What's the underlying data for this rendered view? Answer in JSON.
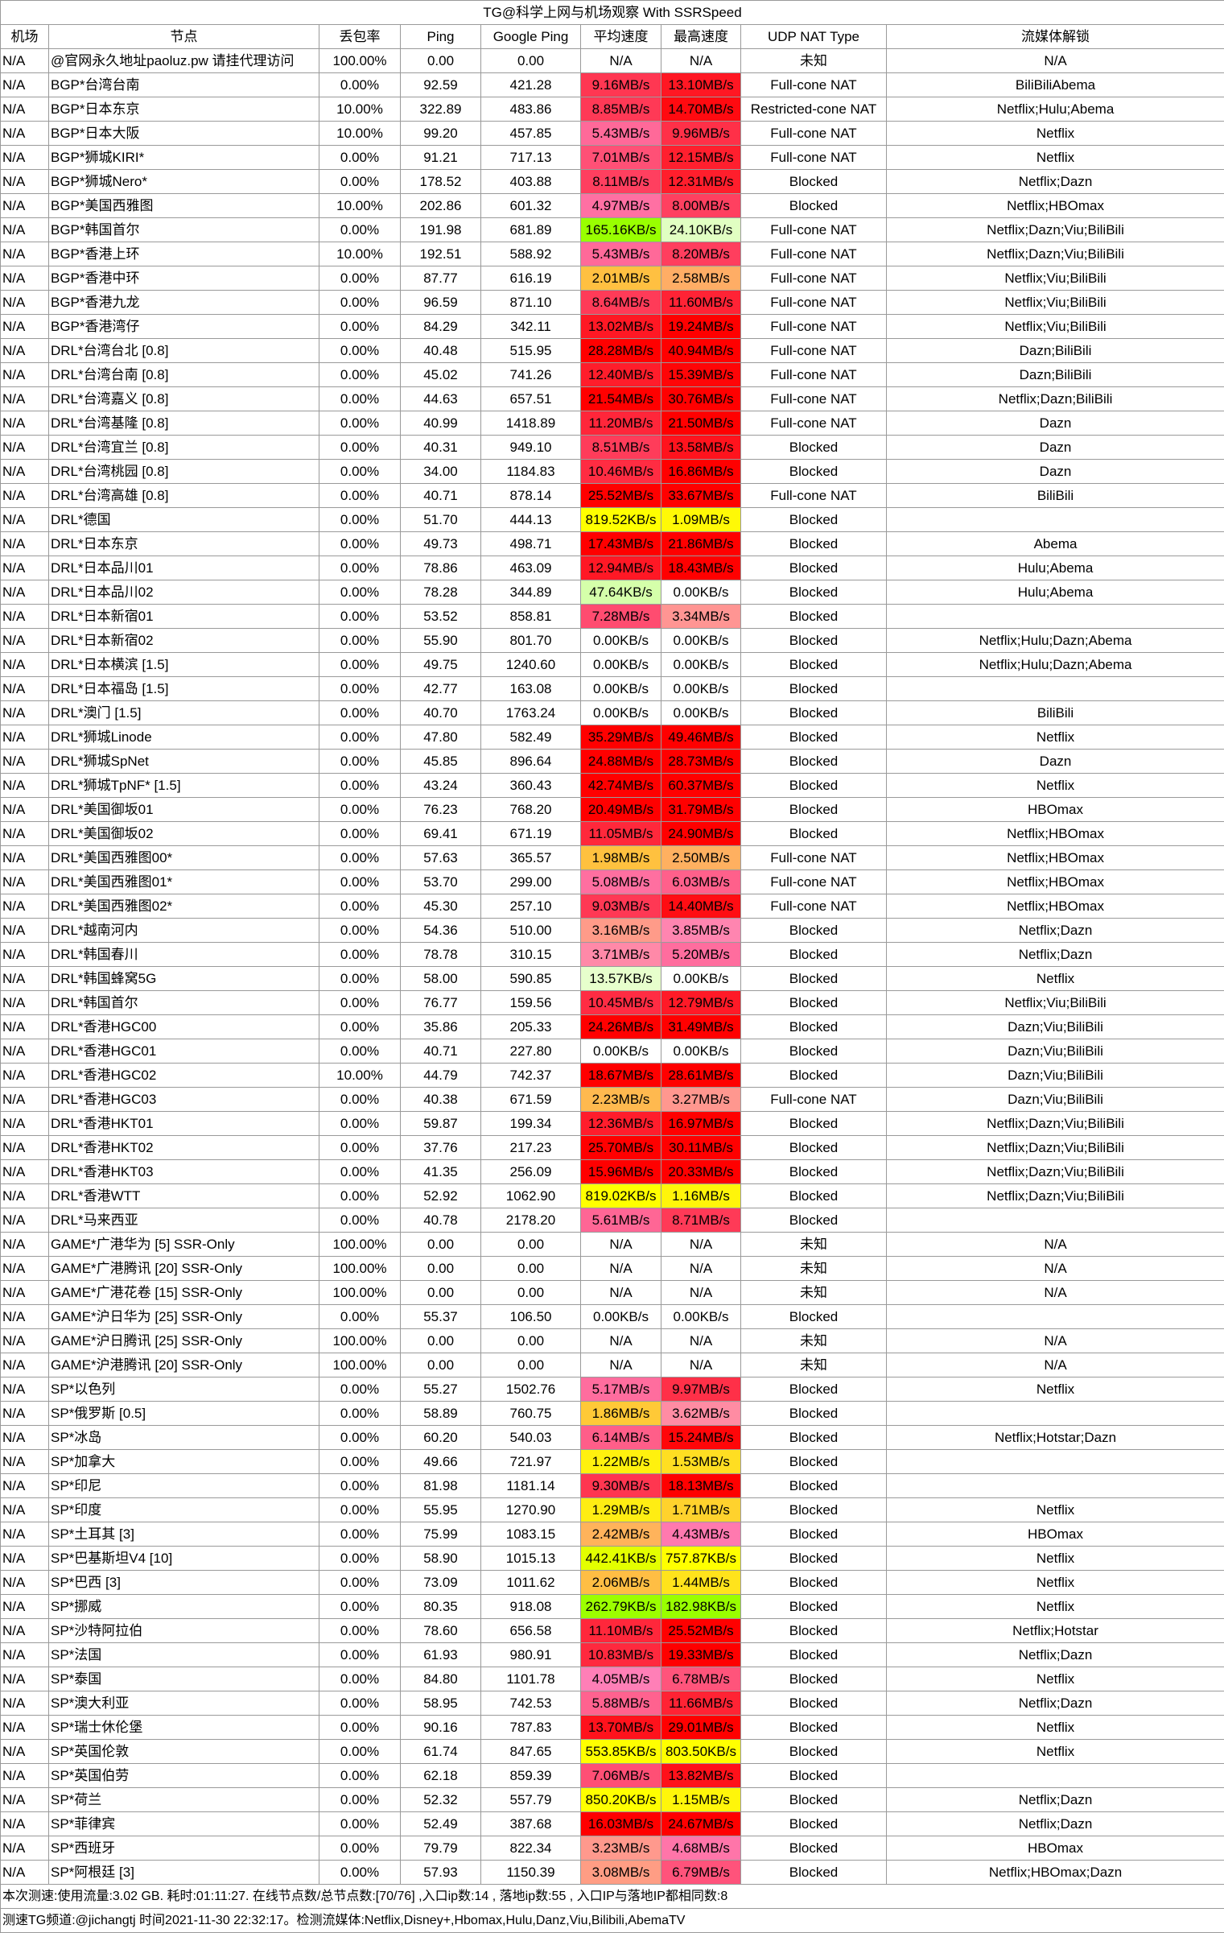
{
  "title": "TG@科学上网与机场观察 With SSRSpeed",
  "headers": [
    "机场",
    "节点",
    "丢包率",
    "Ping",
    "Google Ping",
    "平均速度",
    "最高速度",
    "UDP NAT Type",
    "流媒体解锁"
  ],
  "speed_color_stops": [
    [
      "0",
      "#ffffff"
    ],
    [
      "8KB",
      "#eaffd2"
    ],
    [
      "64KB",
      "#ccff99"
    ],
    [
      "128KB",
      "#99ff00"
    ],
    [
      "256KB",
      "#99ff00"
    ],
    [
      "512KB",
      "#ffff00"
    ],
    [
      "1MB",
      "#ffff00"
    ],
    [
      "2MB",
      "#ffc040"
    ],
    [
      "3MB",
      "#ffa080"
    ],
    [
      "4MB",
      "#ff80b8"
    ],
    [
      "8MB",
      "#ff4060"
    ],
    [
      "16MB",
      "#ff0000"
    ]
  ],
  "rows": [
    [
      "N/A",
      "@官网永久地址paoluz.pw 请挂代理访问",
      "100.00%",
      "0.00",
      "0.00",
      "N/A",
      "N/A",
      "未知",
      "N/A"
    ],
    [
      "N/A",
      "BGP*台湾台南",
      "0.00%",
      "92.59",
      "421.28",
      "9.16MB/s",
      "13.10MB/s",
      "Full-cone NAT",
      "BiliBiliAbema"
    ],
    [
      "N/A",
      "BGP*日本东京",
      "10.00%",
      "322.89",
      "483.86",
      "8.85MB/s",
      "14.70MB/s",
      "Restricted-cone NAT",
      "Netflix;Hulu;Abema"
    ],
    [
      "N/A",
      "BGP*日本大阪",
      "10.00%",
      "99.20",
      "457.85",
      "5.43MB/s",
      "9.96MB/s",
      "Full-cone NAT",
      "Netflix"
    ],
    [
      "N/A",
      "BGP*狮城KIRI*",
      "0.00%",
      "91.21",
      "717.13",
      "7.01MB/s",
      "12.15MB/s",
      "Full-cone NAT",
      "Netflix"
    ],
    [
      "N/A",
      "BGP*狮城Nero*",
      "0.00%",
      "178.52",
      "403.88",
      "8.11MB/s",
      "12.31MB/s",
      "Blocked",
      "Netflix;Dazn"
    ],
    [
      "N/A",
      "BGP*美国西雅图",
      "10.00%",
      "202.86",
      "601.32",
      "4.97MB/s",
      "8.00MB/s",
      "Blocked",
      "Netflix;HBOmax"
    ],
    [
      "N/A",
      "BGP*韩国首尔",
      "0.00%",
      "191.98",
      "681.89",
      "165.16KB/s",
      "24.10KB/s",
      "Full-cone NAT",
      "Netflix;Dazn;Viu;BiliBili"
    ],
    [
      "N/A",
      "BGP*香港上环",
      "10.00%",
      "192.51",
      "588.92",
      "5.43MB/s",
      "8.20MB/s",
      "Full-cone NAT",
      "Netflix;Dazn;Viu;BiliBili"
    ],
    [
      "N/A",
      "BGP*香港中环",
      "0.00%",
      "87.77",
      "616.19",
      "2.01MB/s",
      "2.58MB/s",
      "Full-cone NAT",
      "Netflix;Viu;BiliBili"
    ],
    [
      "N/A",
      "BGP*香港九龙",
      "0.00%",
      "96.59",
      "871.10",
      "8.64MB/s",
      "11.60MB/s",
      "Full-cone NAT",
      "Netflix;Viu;BiliBili"
    ],
    [
      "N/A",
      "BGP*香港湾仔",
      "0.00%",
      "84.29",
      "342.11",
      "13.02MB/s",
      "19.24MB/s",
      "Full-cone NAT",
      "Netflix;Viu;BiliBili"
    ],
    [
      "N/A",
      "DRL*台湾台北 [0.8]",
      "0.00%",
      "40.48",
      "515.95",
      "28.28MB/s",
      "40.94MB/s",
      "Full-cone NAT",
      "Dazn;BiliBili"
    ],
    [
      "N/A",
      "DRL*台湾台南 [0.8]",
      "0.00%",
      "45.02",
      "741.26",
      "12.40MB/s",
      "15.39MB/s",
      "Full-cone NAT",
      "Dazn;BiliBili"
    ],
    [
      "N/A",
      "DRL*台湾嘉义 [0.8]",
      "0.00%",
      "44.63",
      "657.51",
      "21.54MB/s",
      "30.76MB/s",
      "Full-cone NAT",
      "Netflix;Dazn;BiliBili"
    ],
    [
      "N/A",
      "DRL*台湾基隆 [0.8]",
      "0.00%",
      "40.99",
      "1418.89",
      "11.20MB/s",
      "21.50MB/s",
      "Full-cone NAT",
      "Dazn"
    ],
    [
      "N/A",
      "DRL*台湾宜兰 [0.8]",
      "0.00%",
      "40.31",
      "949.10",
      "8.51MB/s",
      "13.58MB/s",
      "Blocked",
      "Dazn"
    ],
    [
      "N/A",
      "DRL*台湾桃园 [0.8]",
      "0.00%",
      "34.00",
      "1184.83",
      "10.46MB/s",
      "16.86MB/s",
      "Blocked",
      "Dazn"
    ],
    [
      "N/A",
      "DRL*台湾高雄 [0.8]",
      "0.00%",
      "40.71",
      "878.14",
      "25.52MB/s",
      "33.67MB/s",
      "Full-cone NAT",
      "BiliBili"
    ],
    [
      "N/A",
      "DRL*德国",
      "0.00%",
      "51.70",
      "444.13",
      "819.52KB/s",
      "1.09MB/s",
      "Blocked",
      ""
    ],
    [
      "N/A",
      "DRL*日本东京",
      "0.00%",
      "49.73",
      "498.71",
      "17.43MB/s",
      "21.86MB/s",
      "Blocked",
      "Abema"
    ],
    [
      "N/A",
      "DRL*日本品川01",
      "0.00%",
      "78.86",
      "463.09",
      "12.94MB/s",
      "18.43MB/s",
      "Blocked",
      "Hulu;Abema"
    ],
    [
      "N/A",
      "DRL*日本品川02",
      "0.00%",
      "78.28",
      "344.89",
      "47.64KB/s",
      "0.00KB/s",
      "Blocked",
      "Hulu;Abema"
    ],
    [
      "N/A",
      "DRL*日本新宿01",
      "0.00%",
      "53.52",
      "858.81",
      "7.28MB/s",
      "3.34MB/s",
      "Blocked",
      ""
    ],
    [
      "N/A",
      "DRL*日本新宿02",
      "0.00%",
      "55.90",
      "801.70",
      "0.00KB/s",
      "0.00KB/s",
      "Blocked",
      "Netflix;Hulu;Dazn;Abema"
    ],
    [
      "N/A",
      "DRL*日本横滨 [1.5]",
      "0.00%",
      "49.75",
      "1240.60",
      "0.00KB/s",
      "0.00KB/s",
      "Blocked",
      "Netflix;Hulu;Dazn;Abema"
    ],
    [
      "N/A",
      "DRL*日本福岛 [1.5]",
      "0.00%",
      "42.77",
      "163.08",
      "0.00KB/s",
      "0.00KB/s",
      "Blocked",
      ""
    ],
    [
      "N/A",
      "DRL*澳门 [1.5]",
      "0.00%",
      "40.70",
      "1763.24",
      "0.00KB/s",
      "0.00KB/s",
      "Blocked",
      "BiliBili"
    ],
    [
      "N/A",
      "DRL*狮城Linode",
      "0.00%",
      "47.80",
      "582.49",
      "35.29MB/s",
      "49.46MB/s",
      "Blocked",
      "Netflix"
    ],
    [
      "N/A",
      "DRL*狮城SpNet",
      "0.00%",
      "45.85",
      "896.64",
      "24.88MB/s",
      "28.73MB/s",
      "Blocked",
      "Dazn"
    ],
    [
      "N/A",
      "DRL*狮城TpNF* [1.5]",
      "0.00%",
      "43.24",
      "360.43",
      "42.74MB/s",
      "60.37MB/s",
      "Blocked",
      "Netflix"
    ],
    [
      "N/A",
      "DRL*美国御坂01",
      "0.00%",
      "76.23",
      "768.20",
      "20.49MB/s",
      "31.79MB/s",
      "Blocked",
      "HBOmax"
    ],
    [
      "N/A",
      "DRL*美国御坂02",
      "0.00%",
      "69.41",
      "671.19",
      "11.05MB/s",
      "24.90MB/s",
      "Blocked",
      "Netflix;HBOmax"
    ],
    [
      "N/A",
      "DRL*美国西雅图00*",
      "0.00%",
      "57.63",
      "365.57",
      "1.98MB/s",
      "2.50MB/s",
      "Full-cone NAT",
      "Netflix;HBOmax"
    ],
    [
      "N/A",
      "DRL*美国西雅图01*",
      "0.00%",
      "53.70",
      "299.00",
      "5.08MB/s",
      "6.03MB/s",
      "Full-cone NAT",
      "Netflix;HBOmax"
    ],
    [
      "N/A",
      "DRL*美国西雅图02*",
      "0.00%",
      "45.30",
      "257.10",
      "9.03MB/s",
      "14.40MB/s",
      "Full-cone NAT",
      "Netflix;HBOmax"
    ],
    [
      "N/A",
      "DRL*越南河内",
      "0.00%",
      "54.36",
      "510.00",
      "3.16MB/s",
      "3.85MB/s",
      "Blocked",
      "Netflix;Dazn"
    ],
    [
      "N/A",
      "DRL*韩国春川",
      "0.00%",
      "78.78",
      "310.15",
      "3.71MB/s",
      "5.20MB/s",
      "Blocked",
      "Netflix;Dazn"
    ],
    [
      "N/A",
      "DRL*韩国蜂窝5G",
      "0.00%",
      "58.00",
      "590.85",
      "13.57KB/s",
      "0.00KB/s",
      "Blocked",
      "Netflix"
    ],
    [
      "N/A",
      "DRL*韩国首尔",
      "0.00%",
      "76.77",
      "159.56",
      "10.45MB/s",
      "12.79MB/s",
      "Blocked",
      "Netflix;Viu;BiliBili"
    ],
    [
      "N/A",
      "DRL*香港HGC00",
      "0.00%",
      "35.86",
      "205.33",
      "24.26MB/s",
      "31.49MB/s",
      "Blocked",
      "Dazn;Viu;BiliBili"
    ],
    [
      "N/A",
      "DRL*香港HGC01",
      "0.00%",
      "40.71",
      "227.80",
      "0.00KB/s",
      "0.00KB/s",
      "Blocked",
      "Dazn;Viu;BiliBili"
    ],
    [
      "N/A",
      "DRL*香港HGC02",
      "10.00%",
      "44.79",
      "742.37",
      "18.67MB/s",
      "28.61MB/s",
      "Blocked",
      "Dazn;Viu;BiliBili"
    ],
    [
      "N/A",
      "DRL*香港HGC03",
      "0.00%",
      "40.38",
      "671.59",
      "2.23MB/s",
      "3.27MB/s",
      "Full-cone NAT",
      "Dazn;Viu;BiliBili"
    ],
    [
      "N/A",
      "DRL*香港HKT01",
      "0.00%",
      "59.87",
      "199.34",
      "12.36MB/s",
      "16.97MB/s",
      "Blocked",
      "Netflix;Dazn;Viu;BiliBili"
    ],
    [
      "N/A",
      "DRL*香港HKT02",
      "0.00%",
      "37.76",
      "217.23",
      "25.70MB/s",
      "30.11MB/s",
      "Blocked",
      "Netflix;Dazn;Viu;BiliBili"
    ],
    [
      "N/A",
      "DRL*香港HKT03",
      "0.00%",
      "41.35",
      "256.09",
      "15.96MB/s",
      "20.33MB/s",
      "Blocked",
      "Netflix;Dazn;Viu;BiliBili"
    ],
    [
      "N/A",
      "DRL*香港WTT",
      "0.00%",
      "52.92",
      "1062.90",
      "819.02KB/s",
      "1.16MB/s",
      "Blocked",
      "Netflix;Dazn;Viu;BiliBili"
    ],
    [
      "N/A",
      "DRL*马来西亚",
      "0.00%",
      "40.78",
      "2178.20",
      "5.61MB/s",
      "8.71MB/s",
      "Blocked",
      ""
    ],
    [
      "N/A",
      "GAME*广港华为 [5] SSR-Only",
      "100.00%",
      "0.00",
      "0.00",
      "N/A",
      "N/A",
      "未知",
      "N/A"
    ],
    [
      "N/A",
      "GAME*广港腾讯 [20] SSR-Only",
      "100.00%",
      "0.00",
      "0.00",
      "N/A",
      "N/A",
      "未知",
      "N/A"
    ],
    [
      "N/A",
      "GAME*广港花卷 [15] SSR-Only",
      "100.00%",
      "0.00",
      "0.00",
      "N/A",
      "N/A",
      "未知",
      "N/A"
    ],
    [
      "N/A",
      "GAME*沪日华为 [25] SSR-Only",
      "0.00%",
      "55.37",
      "106.50",
      "0.00KB/s",
      "0.00KB/s",
      "Blocked",
      ""
    ],
    [
      "N/A",
      "GAME*沪日腾讯 [25] SSR-Only",
      "100.00%",
      "0.00",
      "0.00",
      "N/A",
      "N/A",
      "未知",
      "N/A"
    ],
    [
      "N/A",
      "GAME*沪港腾讯 [20] SSR-Only",
      "100.00%",
      "0.00",
      "0.00",
      "N/A",
      "N/A",
      "未知",
      "N/A"
    ],
    [
      "N/A",
      "SP*以色列",
      "0.00%",
      "55.27",
      "1502.76",
      "5.17MB/s",
      "9.97MB/s",
      "Blocked",
      "Netflix"
    ],
    [
      "N/A",
      "SP*俄罗斯 [0.5]",
      "0.00%",
      "58.89",
      "760.75",
      "1.86MB/s",
      "3.62MB/s",
      "Blocked",
      ""
    ],
    [
      "N/A",
      "SP*冰岛",
      "0.00%",
      "60.20",
      "540.03",
      "6.14MB/s",
      "15.24MB/s",
      "Blocked",
      "Netflix;Hotstar;Dazn"
    ],
    [
      "N/A",
      "SP*加拿大",
      "0.00%",
      "49.66",
      "721.97",
      "1.22MB/s",
      "1.53MB/s",
      "Blocked",
      ""
    ],
    [
      "N/A",
      "SP*印尼",
      "0.00%",
      "81.98",
      "1181.14",
      "9.30MB/s",
      "18.13MB/s",
      "Blocked",
      ""
    ],
    [
      "N/A",
      "SP*印度",
      "0.00%",
      "55.95",
      "1270.90",
      "1.29MB/s",
      "1.71MB/s",
      "Blocked",
      "Netflix"
    ],
    [
      "N/A",
      "SP*土耳其 [3]",
      "0.00%",
      "75.99",
      "1083.15",
      "2.42MB/s",
      "4.43MB/s",
      "Blocked",
      "HBOmax"
    ],
    [
      "N/A",
      "SP*巴基斯坦V4 [10]",
      "0.00%",
      "58.90",
      "1015.13",
      "442.41KB/s",
      "757.87KB/s",
      "Blocked",
      "Netflix"
    ],
    [
      "N/A",
      "SP*巴西 [3]",
      "0.00%",
      "73.09",
      "1011.62",
      "2.06MB/s",
      "1.44MB/s",
      "Blocked",
      "Netflix"
    ],
    [
      "N/A",
      "SP*挪威",
      "0.00%",
      "80.35",
      "918.08",
      "262.79KB/s",
      "182.98KB/s",
      "Blocked",
      "Netflix"
    ],
    [
      "N/A",
      "SP*沙特阿拉伯",
      "0.00%",
      "78.60",
      "656.58",
      "11.10MB/s",
      "25.52MB/s",
      "Blocked",
      "Netflix;Hotstar"
    ],
    [
      "N/A",
      "SP*法国",
      "0.00%",
      "61.93",
      "980.91",
      "10.83MB/s",
      "19.33MB/s",
      "Blocked",
      "Netflix;Dazn"
    ],
    [
      "N/A",
      "SP*泰国",
      "0.00%",
      "84.80",
      "1101.78",
      "4.05MB/s",
      "6.78MB/s",
      "Blocked",
      "Netflix"
    ],
    [
      "N/A",
      "SP*澳大利亚",
      "0.00%",
      "58.95",
      "742.53",
      "5.88MB/s",
      "11.66MB/s",
      "Blocked",
      "Netflix;Dazn"
    ],
    [
      "N/A",
      "SP*瑞士休伦堡",
      "0.00%",
      "90.16",
      "787.83",
      "13.70MB/s",
      "29.01MB/s",
      "Blocked",
      "Netflix"
    ],
    [
      "N/A",
      "SP*英国伦敦",
      "0.00%",
      "61.74",
      "847.65",
      "553.85KB/s",
      "803.50KB/s",
      "Blocked",
      "Netflix"
    ],
    [
      "N/A",
      "SP*英国伯劳",
      "0.00%",
      "62.18",
      "859.39",
      "7.06MB/s",
      "13.82MB/s",
      "Blocked",
      ""
    ],
    [
      "N/A",
      "SP*荷兰",
      "0.00%",
      "52.32",
      "557.79",
      "850.20KB/s",
      "1.15MB/s",
      "Blocked",
      "Netflix;Dazn"
    ],
    [
      "N/A",
      "SP*菲律宾",
      "0.00%",
      "52.49",
      "387.68",
      "16.03MB/s",
      "24.67MB/s",
      "Blocked",
      "Netflix;Dazn"
    ],
    [
      "N/A",
      "SP*西班牙",
      "0.00%",
      "79.79",
      "822.34",
      "3.23MB/s",
      "4.68MB/s",
      "Blocked",
      "HBOmax"
    ],
    [
      "N/A",
      "SP*阿根廷 [3]",
      "0.00%",
      "57.93",
      "1150.39",
      "3.08MB/s",
      "6.79MB/s",
      "Blocked",
      "Netflix;HBOmax;Dazn"
    ]
  ],
  "footer": {
    "summary": "本次测速:使用流量:3.02 GB. 耗时:01:11:27. 在线节点数/总节点数:[70/76] ,入口ip数:14 , 落地ip数:55 , 入口IP与落地IP都相同数:8",
    "channel": "测速TG频道:@jichangtj 时间2021-11-30 22:32:17。检测流媒体:Netflix,Disney+,Hbomax,Hulu,Danz,Viu,Bilibili,AbemaTV"
  }
}
